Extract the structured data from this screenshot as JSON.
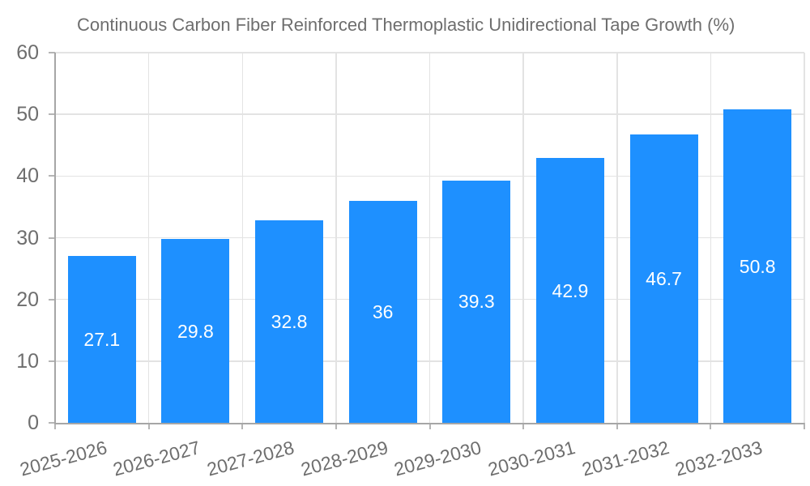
{
  "legend": {
    "swatch_color": "#1E90FF"
  },
  "chart_data": {
    "type": "bar",
    "title": "Continuous Carbon Fiber Reinforced Thermoplastic Unidirectional Tape Growth (%)",
    "categories": [
      "2025-2026",
      "2026-2027",
      "2027-2028",
      "2028-2029",
      "2029-2030",
      "2030-2031",
      "2031-2032",
      "2032-2033"
    ],
    "values": [
      27.1,
      29.8,
      32.8,
      36,
      39.3,
      42.9,
      46.7,
      50.8
    ],
    "value_labels": [
      "27.1",
      "29.8",
      "32.8",
      "36",
      "39.3",
      "42.9",
      "46.7",
      "50.8"
    ],
    "xlabel": "",
    "ylabel": "",
    "ylim": [
      0,
      60
    ],
    "yticks": [
      0,
      10,
      20,
      30,
      40,
      50,
      60
    ],
    "grid": true,
    "legend_position": "top-left",
    "bar_color": "#1E90FF",
    "value_label_color": "#ffffff",
    "axis_text_color": "#6e6e6e",
    "gridline_color": "#e3e3e3",
    "axis_line_color": "#a6a6a6"
  }
}
